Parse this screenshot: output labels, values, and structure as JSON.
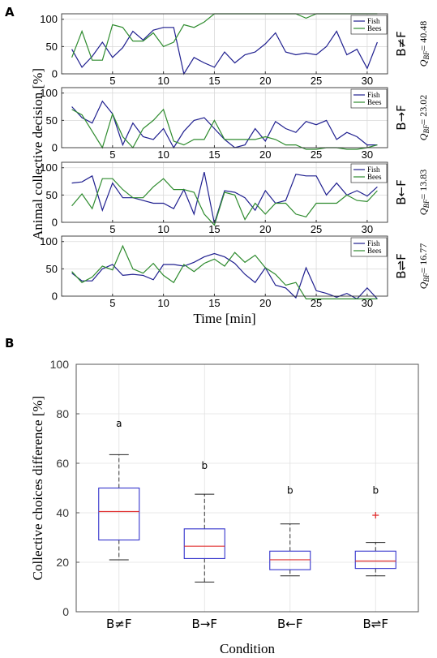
{
  "panel_a_label": "A",
  "panel_b_label": "B",
  "chart_data": [
    {
      "type": "line",
      "panel": "A",
      "ylabel": "Animal collective decision [%]",
      "xlabel": "Time [min]",
      "xlim": [
        0,
        32
      ],
      "ylim": [
        0,
        110
      ],
      "xticks": [
        5,
        10,
        15,
        20,
        25,
        30
      ],
      "yticks": [
        0,
        50,
        100
      ],
      "grid": true,
      "legend_position": "top-right",
      "subplots": [
        {
          "condition": "B≠F",
          "q_label": "Q",
          "q_sub": "BF",
          "q_value": "= 40.48",
          "series": [
            {
              "name": "Fish",
              "color": "#1f1f8f",
              "values": [
                45,
                12,
                32,
                58,
                30,
                48,
                78,
                62,
                80,
                85,
                85,
                0,
                30,
                20,
                12,
                40,
                20,
                35,
                40,
                55,
                75,
                40,
                35,
                38,
                35,
                50,
                78,
                35,
                45,
                10,
                58
              ]
            },
            {
              "name": "Bees",
              "color": "#2e8b2e",
              "values": [
                30,
                78,
                25,
                25,
                90,
                85,
                60,
                60,
                75,
                50,
                58,
                90,
                85,
                95,
                110,
                110,
                110,
                110,
                110,
                110,
                110,
                110,
                110,
                102,
                110,
                110,
                110,
                110,
                110,
                110,
                110
              ]
            }
          ]
        },
        {
          "condition": "B→F",
          "q_label": "Q",
          "q_sub": "BF",
          "q_value": "= 23.02",
          "series": [
            {
              "name": "Fish",
              "color": "#1f1f8f",
              "values": [
                75,
                55,
                45,
                85,
                62,
                5,
                45,
                20,
                15,
                35,
                0,
                30,
                50,
                55,
                35,
                15,
                0,
                5,
                35,
                12,
                48,
                35,
                28,
                48,
                42,
                50,
                15,
                28,
                20,
                5,
                5
              ]
            },
            {
              "name": "Bees",
              "color": "#2e8b2e",
              "values": [
                70,
                60,
                30,
                0,
                62,
                20,
                0,
                35,
                50,
                70,
                12,
                5,
                15,
                15,
                50,
                15,
                15,
                15,
                15,
                20,
                15,
                5,
                5,
                -3,
                -3,
                0,
                0,
                -3,
                -3,
                0,
                5
              ]
            }
          ]
        },
        {
          "condition": "B←F",
          "q_label": "Q",
          "q_sub": "BF",
          "q_value": "= 13.83",
          "series": [
            {
              "name": "Fish",
              "color": "#1f1f8f",
              "values": [
                72,
                74,
                85,
                22,
                72,
                45,
                45,
                40,
                35,
                35,
                25,
                60,
                15,
                92,
                -2,
                58,
                55,
                45,
                22,
                58,
                35,
                40,
                88,
                85,
                85,
                50,
                72,
                50,
                58,
                48,
                65
              ]
            },
            {
              "name": "Bees",
              "color": "#2e8b2e",
              "values": [
                30,
                52,
                25,
                80,
                80,
                60,
                45,
                45,
                65,
                80,
                60,
                60,
                55,
                15,
                -5,
                55,
                50,
                5,
                35,
                15,
                35,
                35,
                15,
                10,
                35,
                35,
                35,
                50,
                40,
                38,
                58
              ]
            }
          ]
        },
        {
          "condition": "B⇌F",
          "q_label": "Q",
          "q_sub": "BF",
          "q_value": "= 16.77",
          "series": [
            {
              "name": "Fish",
              "color": "#1f1f8f",
              "values": [
                42,
                28,
                28,
                50,
                58,
                38,
                40,
                38,
                30,
                58,
                58,
                55,
                62,
                72,
                78,
                72,
                60,
                40,
                25,
                52,
                20,
                15,
                -3,
                52,
                10,
                5,
                -2,
                5,
                -5,
                15,
                -5
              ]
            },
            {
              "name": "Bees",
              "color": "#2e8b2e",
              "values": [
                45,
                25,
                35,
                55,
                48,
                92,
                50,
                42,
                60,
                38,
                25,
                58,
                45,
                60,
                68,
                55,
                80,
                62,
                75,
                52,
                40,
                20,
                25,
                -5,
                -5,
                -5,
                -5,
                -5,
                -5,
                -5,
                -5
              ]
            }
          ]
        }
      ]
    },
    {
      "type": "box",
      "panel": "B",
      "ylabel": "Collective choices difference [%]",
      "xlabel": "Condition",
      "ylim": [
        0,
        100
      ],
      "yticks": [
        0,
        20,
        40,
        60,
        80,
        100
      ],
      "grid": true,
      "categories": [
        "B≠F",
        "B→F",
        "B←F",
        "B⇌F"
      ],
      "boxes": [
        {
          "label": "B≠F",
          "min": 21,
          "q1": 29,
          "median": 40.5,
          "q3": 50,
          "max": 63.5,
          "outliers": [],
          "letter": "a",
          "letter_y": 76
        },
        {
          "label": "B→F",
          "min": 12,
          "q1": 21.5,
          "median": 26.5,
          "q3": 33.5,
          "max": 47.5,
          "outliers": [],
          "letter": "b",
          "letter_y": 59
        },
        {
          "label": "B←F",
          "min": 14.5,
          "q1": 17,
          "median": 21,
          "q3": 24.5,
          "max": 35.5,
          "outliers": [],
          "letter": "b",
          "letter_y": 49
        },
        {
          "label": "B⇌F",
          "min": 14.5,
          "q1": 17.5,
          "median": 20.5,
          "q3": 24.5,
          "max": 28,
          "outliers": [
            39
          ],
          "letter": "b",
          "letter_y": 49
        }
      ],
      "box_color": "#3333cc",
      "median_color": "#e03030"
    }
  ]
}
